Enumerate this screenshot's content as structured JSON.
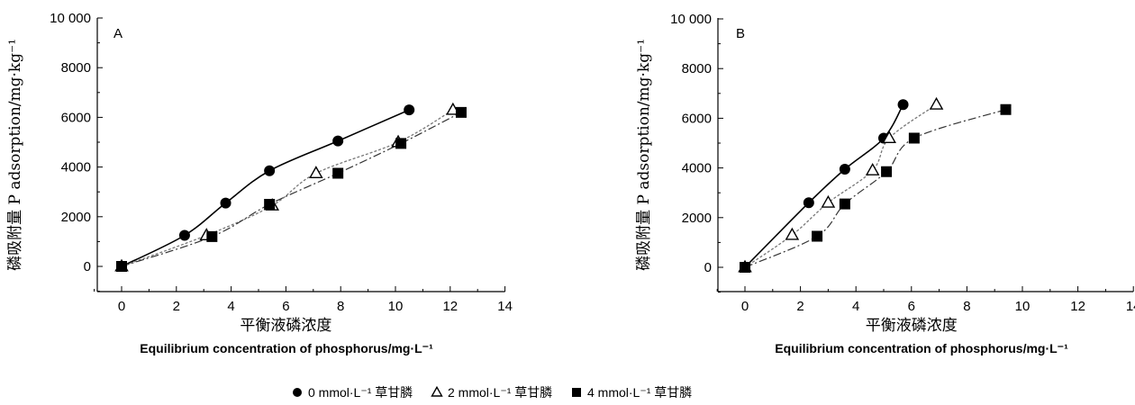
{
  "chart_data": [
    {
      "type": "scatter",
      "panel_label": "A",
      "xlabel_cn": "平衡液磷浓度",
      "xlabel_en": "Equilibrium concentration of phosphorus/mg·L⁻¹",
      "ylabel": "磷吸附量 P adsorption/mg·kg⁻¹",
      "xlim": [
        -1,
        14
      ],
      "ylim": [
        -1000,
        10000
      ],
      "x_ticks": [
        0,
        2,
        4,
        6,
        8,
        10,
        12,
        14
      ],
      "y_ticks": [
        0,
        2000,
        4000,
        6000,
        8000,
        10000
      ],
      "y_tick_labels": [
        "0",
        "2000",
        "4000",
        "6000",
        "8000",
        "10 000"
      ],
      "series": [
        {
          "name": "0 mmol·L⁻¹ 草甘膦",
          "marker": "circle",
          "points": [
            [
              0,
              0
            ],
            [
              2.3,
              1250
            ],
            [
              3.8,
              2550
            ],
            [
              5.4,
              3850
            ],
            [
              7.9,
              5050
            ],
            [
              10.5,
              6300
            ]
          ]
        },
        {
          "name": "2 mmol·L⁻¹ 草甘膦",
          "marker": "triangle",
          "points": [
            [
              0,
              0
            ],
            [
              3.1,
              1250
            ],
            [
              5.5,
              2450
            ],
            [
              7.1,
              3750
            ],
            [
              10.1,
              5000
            ],
            [
              12.1,
              6300
            ]
          ]
        },
        {
          "name": "4 mmol·L⁻¹ 草甘膦",
          "marker": "square",
          "points": [
            [
              0,
              0
            ],
            [
              3.3,
              1200
            ],
            [
              5.4,
              2500
            ],
            [
              7.9,
              3750
            ],
            [
              10.2,
              4950
            ],
            [
              12.4,
              6200
            ]
          ]
        }
      ]
    },
    {
      "type": "scatter",
      "panel_label": "B",
      "xlabel_cn": "平衡液磷浓度",
      "xlabel_en": "Equilibrium concentration of phosphorus/mg·L⁻¹",
      "ylabel": "磷吸附量 P adsorption/mg·kg⁻¹",
      "xlim": [
        -1,
        14
      ],
      "ylim": [
        -1000,
        10000
      ],
      "x_ticks": [
        0,
        2,
        4,
        6,
        8,
        10,
        12,
        14
      ],
      "y_ticks": [
        0,
        2000,
        4000,
        6000,
        8000,
        10000
      ],
      "y_tick_labels": [
        "0",
        "2000",
        "4000",
        "6000",
        "8000",
        "10 000"
      ],
      "series": [
        {
          "name": "0 mmol·L⁻¹ 草甘膦",
          "marker": "circle",
          "points": [
            [
              0,
              0
            ],
            [
              2.3,
              2600
            ],
            [
              3.6,
              3950
            ],
            [
              5.0,
              5200
            ],
            [
              5.7,
              6550
            ]
          ]
        },
        {
          "name": "2 mmol·L⁻¹ 草甘膦",
          "marker": "triangle",
          "points": [
            [
              0,
              0
            ],
            [
              1.7,
              1300
            ],
            [
              3.0,
              2600
            ],
            [
              4.6,
              3900
            ],
            [
              5.2,
              5200
            ],
            [
              6.9,
              6550
            ]
          ]
        },
        {
          "name": "4 mmol·L⁻¹ 草甘膦",
          "marker": "square",
          "points": [
            [
              0,
              0
            ],
            [
              2.6,
              1250
            ],
            [
              3.6,
              2550
            ],
            [
              5.1,
              3850
            ],
            [
              6.1,
              5200
            ],
            [
              9.4,
              6350
            ]
          ]
        }
      ]
    }
  ],
  "legend": [
    {
      "marker": "circle",
      "label": "0 mmol·L⁻¹ 草甘膦"
    },
    {
      "marker": "triangle",
      "label": "2 mmol·L⁻¹ 草甘膦"
    },
    {
      "marker": "square",
      "label": "4 mmol·L⁻¹ 草甘膦"
    }
  ]
}
